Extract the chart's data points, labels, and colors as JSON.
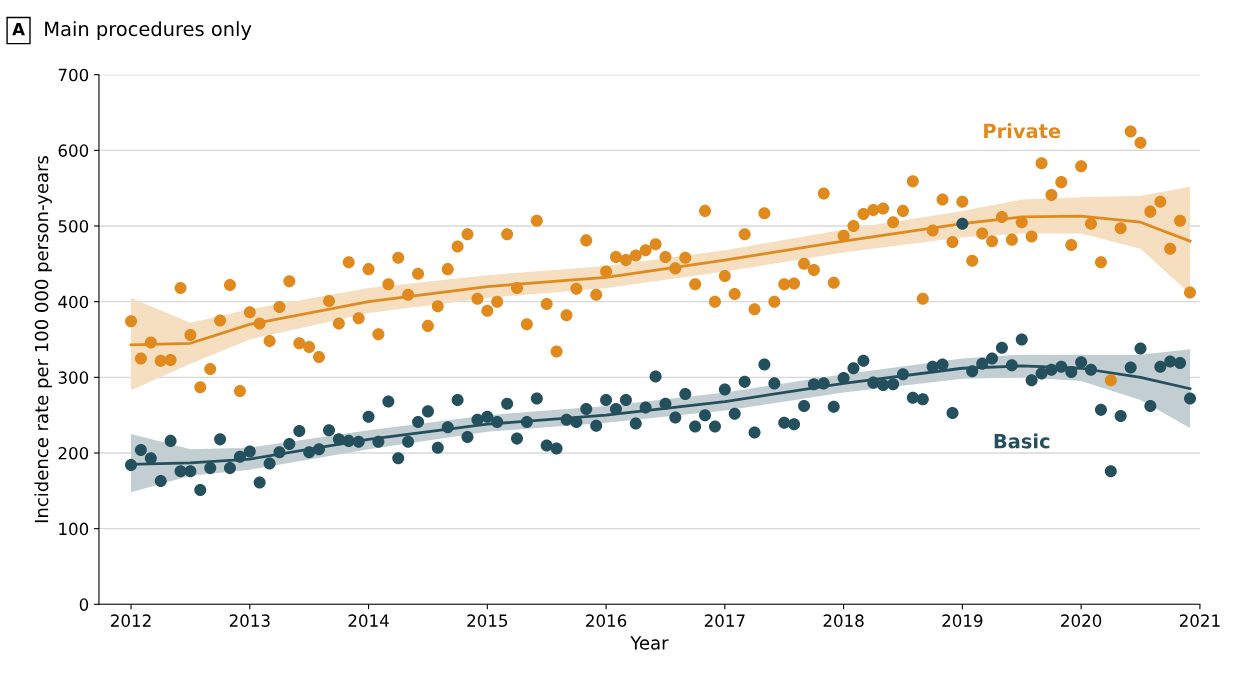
{
  "chart_data": {
    "type": "scatter",
    "title": "Main procedures only",
    "xlabel": "Year",
    "ylabel": "Incidence rate per 100 000 person-years",
    "annotations": [
      "A"
    ],
    "x": [
      2012,
      2012.083,
      2012.167,
      2012.25,
      2012.333,
      2012.417,
      2012.5,
      2012.583,
      2012.667,
      2012.75,
      2012.833,
      2012.917,
      2013,
      2013.083,
      2013.167,
      2013.25,
      2013.333,
      2013.417,
      2013.5,
      2013.583,
      2013.667,
      2013.75,
      2013.833,
      2013.917,
      2014,
      2014.083,
      2014.167,
      2014.25,
      2014.333,
      2014.417,
      2014.5,
      2014.583,
      2014.667,
      2014.75,
      2014.833,
      2014.917,
      2015,
      2015.083,
      2015.167,
      2015.25,
      2015.333,
      2015.417,
      2015.5,
      2015.583,
      2015.667,
      2015.75,
      2015.833,
      2015.917,
      2016,
      2016.083,
      2016.167,
      2016.25,
      2016.333,
      2016.417,
      2016.5,
      2016.583,
      2016.667,
      2016.75,
      2016.833,
      2016.917,
      2017,
      2017.083,
      2017.167,
      2017.25,
      2017.333,
      2017.417,
      2017.5,
      2017.583,
      2017.667,
      2017.75,
      2017.833,
      2017.917,
      2018,
      2018.083,
      2018.167,
      2018.25,
      2018.333,
      2018.417,
      2018.5,
      2018.583,
      2018.667,
      2018.75,
      2018.833,
      2018.917,
      2019,
      2019.083,
      2019.167,
      2019.25,
      2019.333,
      2019.417,
      2019.5,
      2019.583,
      2019.667,
      2019.75,
      2019.833,
      2019.917,
      2020,
      2020.083,
      2020.167,
      2020.25,
      2020.333,
      2020.417,
      2020.5,
      2020.583,
      2020.667,
      2020.75,
      2020.833,
      2020.917
    ],
    "series": [
      {
        "name": "Private",
        "color": "#e08a1e",
        "values": [
          374,
          325,
          346,
          322,
          323,
          418,
          356,
          287,
          311,
          375,
          422,
          282,
          386,
          371,
          348,
          393,
          427,
          345,
          340,
          327,
          401,
          371,
          452,
          378,
          443,
          357,
          423,
          458,
          409,
          437,
          368,
          394,
          443,
          473,
          489,
          404,
          388,
          400,
          489,
          418,
          370,
          507,
          397,
          334,
          382,
          417,
          481,
          409,
          440,
          459,
          455,
          461,
          468,
          476,
          459,
          444,
          458,
          423,
          520,
          400,
          434,
          410,
          489,
          390,
          517,
          400,
          423,
          424,
          450,
          442,
          543,
          425,
          487,
          500,
          516,
          521,
          523,
          505,
          520,
          559,
          404,
          494,
          535,
          479,
          532,
          454,
          490,
          480,
          512,
          482,
          505,
          486,
          583,
          541,
          558,
          475,
          579,
          503,
          452,
          296,
          497,
          625,
          610,
          519,
          532,
          470,
          507,
          412
        ]
      },
      {
        "name": "Basic",
        "color": "#24505e",
        "values": [
          184,
          204,
          193,
          163,
          216,
          176,
          176,
          151,
          180,
          218,
          180,
          195,
          202,
          161,
          186,
          201,
          212,
          229,
          201,
          205,
          230,
          218,
          216,
          215,
          248,
          215,
          268,
          193,
          215,
          241,
          255,
          207,
          234,
          270,
          221,
          244,
          248,
          241,
          265,
          219,
          241,
          272,
          210,
          206,
          244,
          241,
          258,
          236,
          270,
          258,
          270,
          239,
          260,
          301,
          265,
          247,
          278,
          235,
          250,
          235,
          284,
          252,
          294,
          227,
          317,
          292,
          240,
          238,
          262,
          291,
          292,
          261,
          299,
          312,
          322,
          293,
          290,
          291,
          304,
          273,
          271,
          314,
          317,
          253,
          503,
          308,
          318,
          325,
          339,
          316,
          350,
          296,
          305,
          310,
          314,
          307,
          320,
          310,
          257,
          176,
          249,
          313,
          338,
          262,
          314,
          321,
          319,
          272
        ]
      },
      {
        "type": "line",
        "marker": "none",
        "color": "#e08a1e",
        "x": [
          2012,
          2012.5,
          2013,
          2014,
          2015,
          2016,
          2017,
          2018,
          2019,
          2019.5,
          2020,
          2020.5,
          2020.917
        ],
        "values": [
          343,
          345,
          370,
          400,
          420,
          432,
          455,
          480,
          503,
          512,
          513,
          505,
          480
        ],
        "lower": [
          283,
          318,
          350,
          385,
          405,
          418,
          440,
          465,
          485,
          490,
          490,
          470,
          410
        ],
        "upper": [
          405,
          372,
          390,
          418,
          435,
          447,
          468,
          495,
          520,
          535,
          538,
          540,
          552
        ]
      },
      {
        "type": "line",
        "marker": "none",
        "color": "#24505e",
        "x": [
          2012,
          2012.5,
          2013,
          2014,
          2015,
          2016,
          2017,
          2018,
          2019,
          2019.5,
          2020,
          2020.5,
          2020.917
        ],
        "values": [
          185,
          187,
          192,
          218,
          238,
          250,
          268,
          292,
          312,
          315,
          312,
          300,
          285
        ],
        "lower": [
          148,
          170,
          178,
          205,
          228,
          240,
          256,
          280,
          298,
          300,
          295,
          270,
          233
        ],
        "upper": [
          225,
          205,
          207,
          230,
          250,
          262,
          280,
          304,
          325,
          330,
          330,
          330,
          337
        ]
      }
    ],
    "xlim": [
      2011.73,
      2021
    ],
    "xticks": [
      2012,
      2013,
      2014,
      2015,
      2016,
      2017,
      2018,
      2019,
      2020,
      2021
    ],
    "ylim": [
      0,
      700
    ],
    "yticks": [
      0,
      100,
      200,
      300,
      400,
      500,
      600,
      700
    ],
    "grid": "y",
    "legend": false,
    "marker": "circle"
  }
}
